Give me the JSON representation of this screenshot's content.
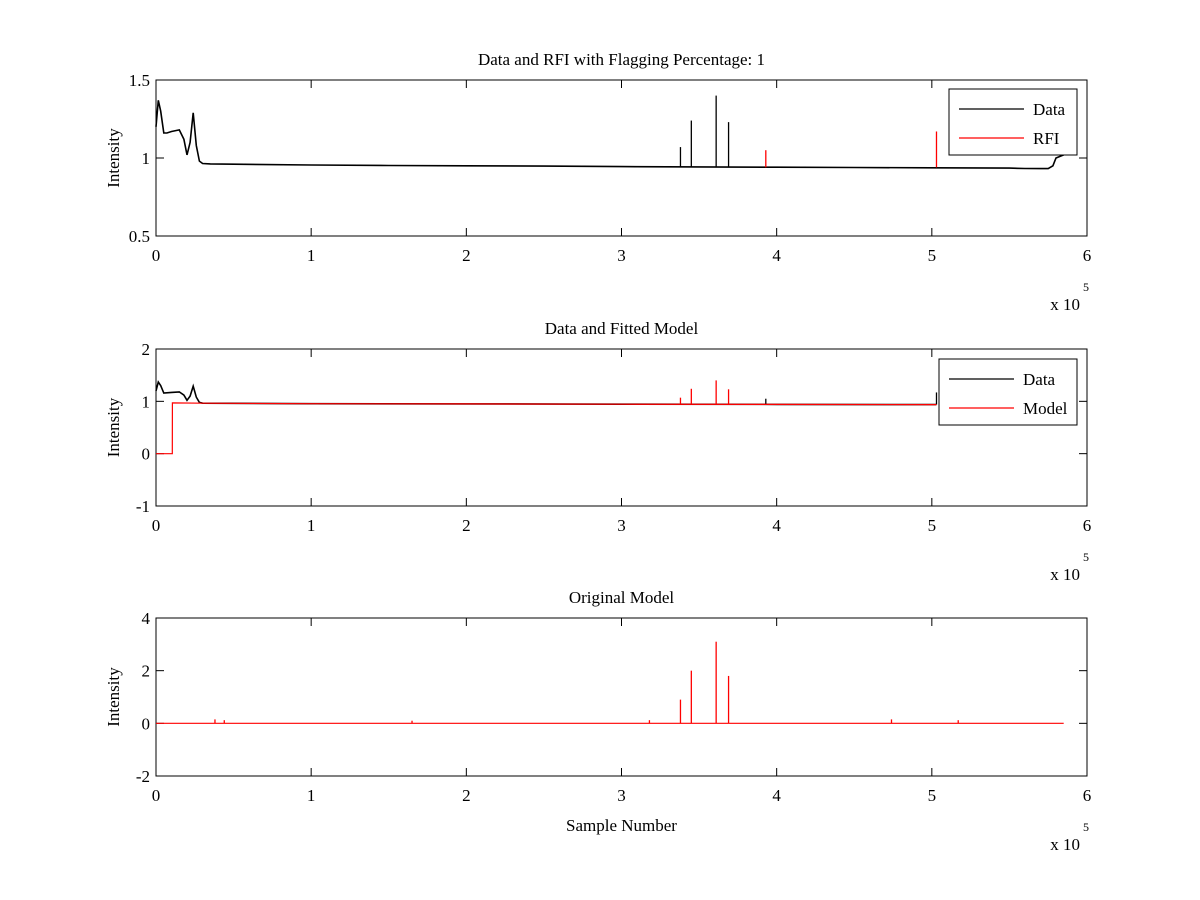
{
  "figure": {
    "background": "#ffffff",
    "colors": {
      "data": "#000000",
      "rfi": "#ff0000",
      "model": "#ff0000"
    }
  },
  "chart_data": [
    {
      "type": "line",
      "title": "Data and RFI with Flagging Percentage: 1",
      "xlabel": "",
      "ylabel": "Intensity",
      "xlim": [
        0,
        600000
      ],
      "ylim": [
        0.5,
        1.5
      ],
      "xticks": [
        "0",
        "1",
        "2",
        "3",
        "4",
        "5",
        "6"
      ],
      "yticks": [
        "0.5",
        "1",
        "1.5"
      ],
      "x_multiplier": {
        "base": "x 10",
        "exponent": "5"
      },
      "legend": {
        "position": "top-right",
        "entries": [
          {
            "label": "Data",
            "color": "#000000"
          },
          {
            "label": "RFI",
            "color": "#ff0000"
          }
        ]
      },
      "series": [
        {
          "name": "Data",
          "color": "#000000",
          "x": [
            0,
            1500,
            3000,
            5000,
            7000,
            10000,
            15000,
            18000,
            20000,
            22000,
            24000,
            26000,
            28000,
            30000,
            35000,
            50000,
            100000,
            150000,
            200000,
            250000,
            300000,
            350000,
            400000,
            450000,
            500000,
            550000,
            560000,
            570000,
            575000,
            578000,
            580000,
            585000
          ],
          "y": [
            1.2,
            1.37,
            1.3,
            1.16,
            1.16,
            1.17,
            1.18,
            1.12,
            1.02,
            1.1,
            1.29,
            1.08,
            0.98,
            0.965,
            0.962,
            0.96,
            0.955,
            0.952,
            0.95,
            0.948,
            0.945,
            0.943,
            0.941,
            0.939,
            0.937,
            0.935,
            0.933,
            0.932,
            0.932,
            0.95,
            1.0,
            1.02
          ],
          "spikes": [
            {
              "x": 338000,
              "y": 1.07
            },
            {
              "x": 345000,
              "y": 1.24
            },
            {
              "x": 361000,
              "y": 1.4
            },
            {
              "x": 369000,
              "y": 1.23
            }
          ]
        },
        {
          "name": "RFI",
          "color": "#ff0000",
          "spikes": [
            {
              "x": 393000,
              "y": 1.05
            },
            {
              "x": 503000,
              "y": 1.17
            }
          ]
        }
      ]
    },
    {
      "type": "line",
      "title": "Data and Fitted Model",
      "xlabel": "",
      "ylabel": "Intensity",
      "xlim": [
        0,
        600000
      ],
      "ylim": [
        -1,
        2
      ],
      "xticks": [
        "0",
        "1",
        "2",
        "3",
        "4",
        "5",
        "6"
      ],
      "yticks": [
        "-1",
        "0",
        "1",
        "2"
      ],
      "x_multiplier": {
        "base": "x 10",
        "exponent": "5"
      },
      "legend": {
        "position": "top-right",
        "entries": [
          {
            "label": "Data",
            "color": "#000000"
          },
          {
            "label": "Model",
            "color": "#ff0000"
          }
        ]
      },
      "series": [
        {
          "name": "Data",
          "color": "#000000",
          "x": [
            0,
            1500,
            3000,
            5000,
            10000,
            15000,
            18000,
            20000,
            22000,
            24000,
            26000,
            28000,
            30000,
            100000,
            200000,
            300000,
            400000,
            500000,
            503000
          ],
          "y": [
            1.2,
            1.37,
            1.3,
            1.16,
            1.17,
            1.18,
            1.12,
            1.02,
            1.1,
            1.29,
            1.08,
            0.98,
            0.965,
            0.955,
            0.95,
            0.945,
            0.941,
            0.937,
            0.937
          ],
          "spikes": [
            {
              "x": 393000,
              "y": 1.05
            },
            {
              "x": 503000,
              "y": 1.17
            }
          ]
        },
        {
          "name": "Model",
          "color": "#ff0000",
          "x": [
            0,
            10500,
            10600,
            30000,
            100000,
            200000,
            300000,
            400000,
            500000,
            503000
          ],
          "y": [
            0,
            0,
            0.97,
            0.965,
            0.955,
            0.95,
            0.945,
            0.941,
            0.937,
            0.937
          ],
          "spikes": [
            {
              "x": 338000,
              "y": 1.07
            },
            {
              "x": 345000,
              "y": 1.24
            },
            {
              "x": 361000,
              "y": 1.4
            },
            {
              "x": 369000,
              "y": 1.23
            }
          ]
        }
      ]
    },
    {
      "type": "line",
      "title": "Original Model",
      "xlabel": "Sample Number",
      "ylabel": "Intensity",
      "xlim": [
        0,
        600000
      ],
      "ylim": [
        -2,
        4
      ],
      "xticks": [
        "0",
        "1",
        "2",
        "3",
        "4",
        "5",
        "6"
      ],
      "yticks": [
        "-2",
        "0",
        "2",
        "4"
      ],
      "x_multiplier": {
        "base": "x 10",
        "exponent": "5"
      },
      "series": [
        {
          "name": "",
          "color": "#ff0000",
          "x": [
            0,
            585000
          ],
          "y": [
            0,
            0
          ],
          "spikes": [
            {
              "x": 38000,
              "y": 0.15
            },
            {
              "x": 44000,
              "y": 0.12
            },
            {
              "x": 165000,
              "y": 0.1
            },
            {
              "x": 318000,
              "y": 0.12
            },
            {
              "x": 338000,
              "y": 0.9
            },
            {
              "x": 345000,
              "y": 2.0
            },
            {
              "x": 361000,
              "y": 3.1
            },
            {
              "x": 369000,
              "y": 1.8
            },
            {
              "x": 474000,
              "y": 0.15
            },
            {
              "x": 517000,
              "y": 0.12
            }
          ]
        }
      ]
    }
  ]
}
